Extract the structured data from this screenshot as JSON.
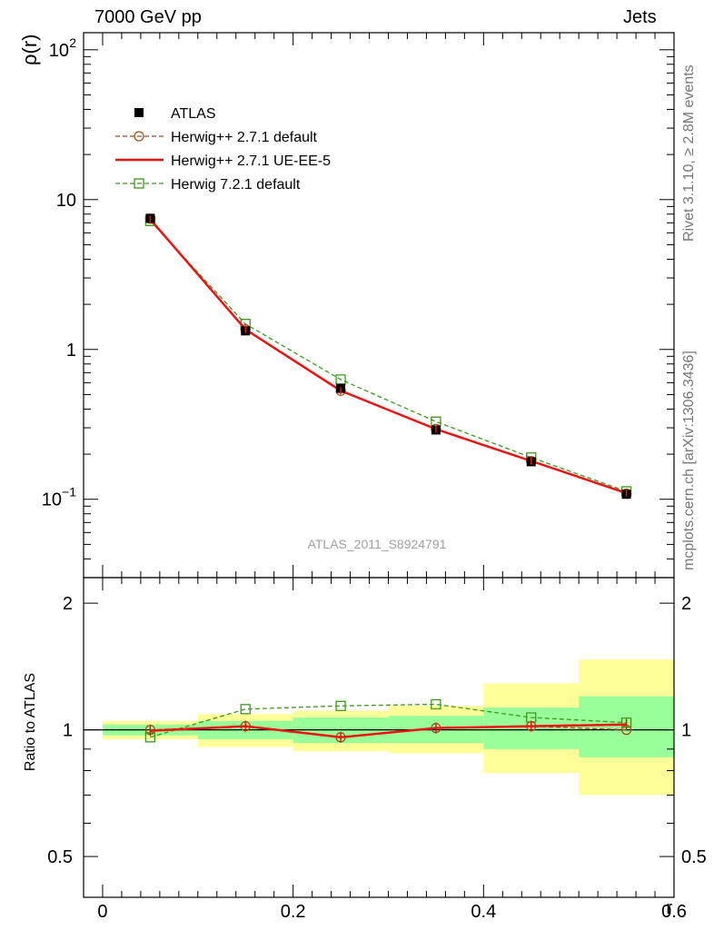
{
  "header": {
    "left": "7000 GeV pp",
    "right": "Jets"
  },
  "side_labels": {
    "rivet": "Rivet 3.1.10, ≥ 2.8M events",
    "mcplots": "mcplots.cern.ch [arXiv:1306.3436]"
  },
  "watermark": "ATLAS_2011_S8924791",
  "colors": {
    "data": "#000000",
    "herwig271": "#a0521a",
    "ueee5": "#ee1111",
    "herwig721": "#3a9a1a",
    "band_inner": "#99ff99",
    "band_outer": "#ffff99"
  },
  "chart_data": [
    {
      "type": "line",
      "panel": "main",
      "ylabel": "ρ(r)",
      "yscale": "log",
      "ylim": [
        0.03,
        130
      ],
      "xlim": [
        -0.02,
        0.6
      ],
      "yticks": [
        {
          "v": 100,
          "base": "10",
          "exp": "2"
        },
        {
          "v": 10,
          "base": "10",
          "exp": ""
        },
        {
          "v": 1,
          "base": "1",
          "exp": ""
        },
        {
          "v": 0.1,
          "base": "10",
          "exp": "−1"
        }
      ],
      "x": [
        0.05,
        0.15,
        0.25,
        0.35,
        0.45,
        0.55
      ],
      "series": [
        {
          "name": "ATLAS",
          "marker": "square-filled",
          "values": [
            7.5,
            1.33,
            0.55,
            0.29,
            0.178,
            0.108
          ]
        },
        {
          "name": "Herwig++ 2.7.1 default",
          "marker": "circle-open",
          "line": "dashed",
          "values": [
            7.45,
            1.36,
            0.53,
            0.295,
            0.18,
            0.109
          ]
        },
        {
          "name": "Herwig++ 2.7.1 UE-EE-5",
          "marker": "none",
          "line": "solid",
          "values": [
            7.4,
            1.36,
            0.53,
            0.294,
            0.18,
            0.11
          ]
        },
        {
          "name": "Herwig 7.2.1 default",
          "marker": "square-open",
          "line": "dashed",
          "values": [
            7.2,
            1.48,
            0.63,
            0.33,
            0.19,
            0.113
          ]
        }
      ]
    },
    {
      "type": "line",
      "panel": "ratio",
      "ylabel": "Ratio to ATLAS",
      "xlabel": "r",
      "ylim": [
        0.4,
        2.3
      ],
      "xlim": [
        -0.02,
        0.6
      ],
      "xticks": [
        "0",
        "0.2",
        "0.4",
        "0.6"
      ],
      "yticks": [
        "0.5",
        "1",
        "2"
      ],
      "bands": [
        {
          "x": [
            0.0,
            0.1
          ],
          "inner": [
            0.97,
            1.03
          ],
          "outer": [
            0.95,
            1.05
          ]
        },
        {
          "x": [
            0.1,
            0.2
          ],
          "inner": [
            0.95,
            1.05
          ],
          "outer": [
            0.91,
            1.09
          ]
        },
        {
          "x": [
            0.2,
            0.3
          ],
          "inner": [
            0.93,
            1.07
          ],
          "outer": [
            0.89,
            1.11
          ]
        },
        {
          "x": [
            0.3,
            0.4
          ],
          "inner": [
            0.93,
            1.08
          ],
          "outer": [
            0.88,
            1.14
          ]
        },
        {
          "x": [
            0.4,
            0.5
          ],
          "inner": [
            0.9,
            1.13
          ],
          "outer": [
            0.79,
            1.29
          ]
        },
        {
          "x": [
            0.5,
            0.6
          ],
          "inner": [
            0.86,
            1.2
          ],
          "outer": [
            0.7,
            1.47
          ]
        }
      ],
      "x": [
        0.05,
        0.15,
        0.25,
        0.35,
        0.45,
        0.55
      ],
      "series": [
        {
          "name": "Herwig++ 2.7.1 default",
          "values": [
            1.0,
            1.02,
            0.96,
            1.01,
            1.02,
            1.0
          ]
        },
        {
          "name": "Herwig++ 2.7.1 UE-EE-5",
          "values": [
            0.995,
            1.02,
            0.96,
            1.01,
            1.02,
            1.03
          ]
        },
        {
          "name": "Herwig 7.2.1 default",
          "values": [
            0.96,
            1.12,
            1.14,
            1.15,
            1.07,
            1.04
          ]
        }
      ]
    }
  ]
}
